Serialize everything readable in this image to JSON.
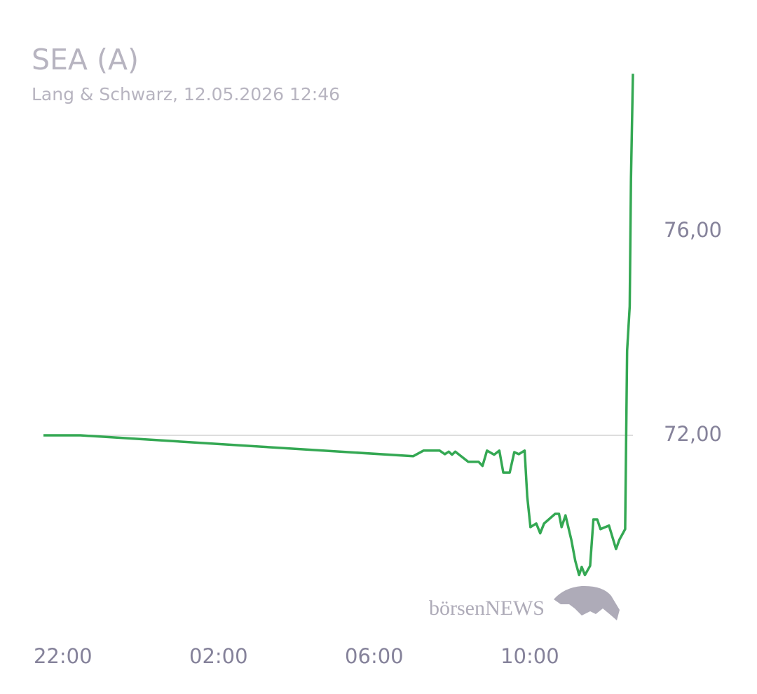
{
  "chart_data": {
    "type": "line",
    "title": "SEA (A)",
    "subtitle": "Lang & Schwarz, 12.05.2026 12:46",
    "watermark": "börsenNEWS",
    "x": [
      "21:30",
      "22:27",
      "07:00",
      "07:16",
      "07:41",
      "07:49",
      "07:55",
      "08:00",
      "08:05",
      "08:25",
      "08:41",
      "08:47",
      "08:54",
      "09:05",
      "09:13",
      "09:19",
      "09:29",
      "09:36",
      "09:43",
      "09:52",
      "09:56",
      "10:01",
      "10:10",
      "10:16",
      "10:22",
      "10:39",
      "10:45",
      "10:49",
      "10:55",
      "11:04",
      "11:10",
      "11:16",
      "11:20",
      "11:25",
      "11:33",
      "11:38",
      "11:44",
      "11:49",
      "12:02",
      "12:13",
      "12:18",
      "12:27",
      "12:30",
      "12:34",
      "12:36",
      "12:39"
    ],
    "series": [
      {
        "name": "SEA (A)",
        "color": "#34a853",
        "values": [
          72.0,
          72.0,
          71.59,
          71.7,
          71.7,
          71.63,
          71.68,
          71.62,
          71.68,
          71.48,
          71.48,
          71.4,
          71.7,
          71.62,
          71.7,
          71.27,
          71.27,
          71.67,
          71.63,
          71.7,
          70.8,
          70.2,
          70.27,
          70.08,
          70.27,
          70.46,
          70.46,
          70.2,
          70.43,
          69.95,
          69.54,
          69.26,
          69.42,
          69.26,
          69.44,
          70.35,
          70.35,
          70.16,
          70.23,
          69.77,
          69.95,
          70.16,
          73.66,
          74.53,
          77.03,
          79.09
        ]
      }
    ],
    "xlim": [
      "21:30",
      "12:39"
    ],
    "xticks": [
      "22:00",
      "02:00",
      "06:00",
      "10:00"
    ],
    "ylim": [
      68.9,
      79.1
    ],
    "yticks": [
      {
        "value": 72,
        "label": "72,00"
      },
      {
        "value": 76,
        "label": "76,00"
      }
    ],
    "reference_line": 72,
    "reference_color": "#dddddd"
  }
}
